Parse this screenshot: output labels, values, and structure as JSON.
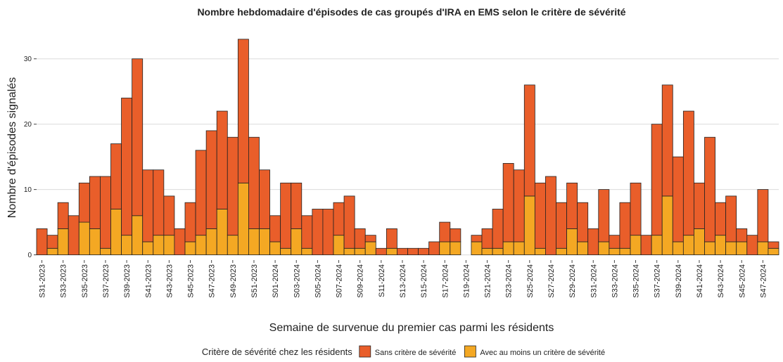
{
  "chart_data": {
    "type": "stacked_bar",
    "title": "Nombre hebdomadaire d'épisodes de cas groupés d'IRA en EMS selon le critère de sévérité",
    "x_label": "Semaine de survenue du premier cas parmi les résidents",
    "y_label": "Nombre d'épisodes signalés",
    "legend_title": "Critère de sévérité chez les résidents",
    "categories": [
      "S31-2023",
      null,
      "S33-2023",
      null,
      "S35-2023",
      null,
      "S37-2023",
      null,
      "S39-2023",
      null,
      "S41-2023",
      null,
      "S43-2023",
      null,
      "S45-2023",
      null,
      "S47-2023",
      null,
      "S49-2023",
      null,
      "S51-2023",
      null,
      "S01-2024",
      null,
      "S03-2024",
      null,
      "S05-2024",
      null,
      "S07-2024",
      null,
      "S09-2024",
      null,
      "S11-2024",
      null,
      "S13-2024",
      null,
      "S15-2024",
      null,
      "S17-2024",
      null,
      "S19-2024",
      null,
      "S21-2024",
      null,
      "S23-2024",
      null,
      "S25-2024",
      null,
      "S27-2024",
      null,
      "S29-2024",
      null,
      "S31-2024",
      null,
      "S33-2024",
      null,
      "S35-2024",
      null,
      "S37-2024",
      null,
      "S39-2024",
      null,
      "S41-2024",
      null,
      "S43-2024",
      null,
      "S45-2024",
      null,
      "S47-2024",
      null
    ],
    "series": [
      {
        "name": "Sans critère de sévérité",
        "color": "#e95e2a",
        "values": [
          4,
          2,
          4,
          6,
          6,
          8,
          11,
          10,
          21,
          24,
          11,
          10,
          6,
          4,
          6,
          13,
          15,
          15,
          15,
          22,
          14,
          9,
          4,
          10,
          7,
          5,
          7,
          7,
          5,
          8,
          3,
          1,
          1,
          3,
          1,
          1,
          1,
          2,
          3,
          2,
          0,
          1,
          3,
          6,
          12,
          11,
          17,
          10,
          12,
          7,
          7,
          6,
          4,
          8,
          2,
          7,
          8,
          3,
          17,
          17,
          13,
          19,
          7,
          16,
          5,
          7,
          2,
          3,
          8,
          1
        ]
      },
      {
        "name": "Avec au moins un critère de sévérité",
        "color": "#f4a823",
        "values": [
          0,
          1,
          4,
          0,
          5,
          4,
          1,
          7,
          3,
          6,
          2,
          3,
          3,
          0,
          2,
          3,
          4,
          7,
          3,
          11,
          4,
          4,
          2,
          1,
          4,
          1,
          0,
          0,
          3,
          1,
          1,
          2,
          0,
          1,
          0,
          0,
          0,
          0,
          2,
          2,
          0,
          2,
          1,
          1,
          2,
          2,
          9,
          1,
          0,
          1,
          4,
          2,
          0,
          2,
          1,
          1,
          3,
          0,
          3,
          9,
          2,
          3,
          4,
          2,
          3,
          2,
          2,
          0,
          2,
          1
        ]
      }
    ],
    "ylim": [
      -0.8,
      34.7
    ],
    "yticks": [
      0,
      10,
      20,
      30
    ],
    "grid": true,
    "legend": "bottom"
  }
}
